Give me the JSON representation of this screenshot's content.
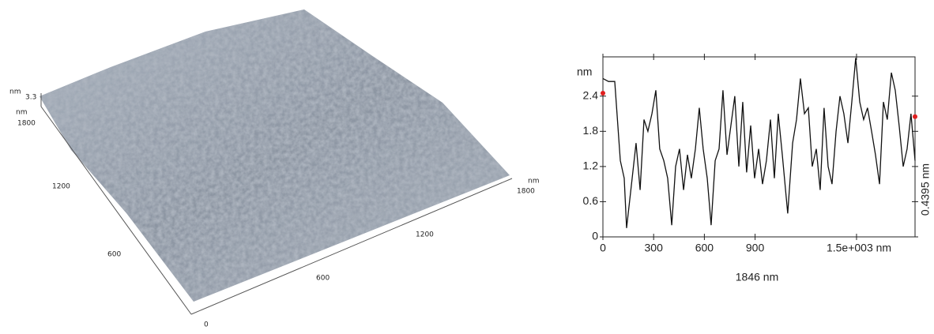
{
  "surface": {
    "z_unit": "nm",
    "z_max": "3.3",
    "y_unit": "nm",
    "y_ticks": [
      "1800",
      "1200",
      "600",
      "0"
    ],
    "x_ticks": [
      "600",
      "1200",
      "1800"
    ],
    "x_unit": "nm"
  },
  "chart_data": {
    "type": "line",
    "y_label": "nm",
    "x_label": "1846 nm",
    "y2_label": "0.4395 nm",
    "x": [
      0,
      33,
      70,
      103,
      126,
      140,
      173,
      196,
      220,
      243,
      266,
      290,
      313,
      336,
      360,
      383,
      407,
      430,
      453,
      477,
      500,
      523,
      547,
      570,
      593,
      617,
      640,
      664,
      687,
      710,
      734,
      757,
      780,
      804,
      827,
      850,
      874,
      897,
      921,
      944,
      967,
      991,
      1014,
      1037,
      1061,
      1093,
      1122,
      1145,
      1168,
      1192,
      1215,
      1238,
      1262,
      1285,
      1308,
      1332,
      1355,
      1379,
      1402,
      1425,
      1449,
      1472,
      1495,
      1519,
      1542,
      1565,
      1589,
      1612,
      1636,
      1659,
      1682,
      1706,
      1729,
      1752,
      1776,
      1799,
      1822,
      1846
    ],
    "series": [
      {
        "color": "#111111",
        "values": [
          2.7,
          2.65,
          2.65,
          1.3,
          1.0,
          0.15,
          1.0,
          1.6,
          0.8,
          2.0,
          1.8,
          2.1,
          2.5,
          1.5,
          1.3,
          1.0,
          0.2,
          1.2,
          1.5,
          0.8,
          1.4,
          1.0,
          1.5,
          2.2,
          1.5,
          1.0,
          0.2,
          1.3,
          1.5,
          2.5,
          1.4,
          1.9,
          2.4,
          1.2,
          2.3,
          1.1,
          1.9,
          1.0,
          1.5,
          0.9,
          1.3,
          2.0,
          1.0,
          2.1,
          1.4,
          0.4,
          1.6,
          2.0,
          2.7,
          2.1,
          2.2,
          1.2,
          1.5,
          0.8,
          2.2,
          1.2,
          0.9,
          1.8,
          2.4,
          2.1,
          1.6,
          2.3,
          3.05,
          2.3,
          2.0,
          2.2,
          1.8,
          1.4,
          0.9,
          2.3,
          2.0,
          2.8,
          2.5,
          1.9,
          1.2,
          1.5,
          2.1,
          1.3
        ]
      }
    ],
    "markers": {
      "color": "#e02020",
      "x": [
        0,
        1846
      ],
      "values": [
        2.45,
        2.05
      ]
    },
    "xlim": [
      0,
      1846
    ],
    "ylim": [
      0,
      3.07
    ],
    "xticks": [
      0,
      300,
      600,
      900,
      {
        "value": 1500,
        "label": "1.5e+003 nm"
      }
    ],
    "yticks": [
      0,
      0.6,
      1.2,
      1.8,
      2.4
    ]
  }
}
